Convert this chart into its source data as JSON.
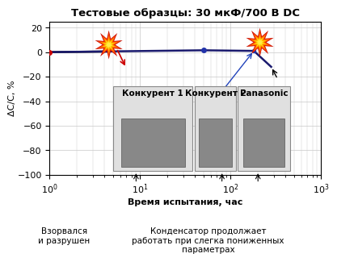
{
  "title": "Тестовые образцы: 30 мкФ/700 В DC",
  "xlabel": "Время испытания, час",
  "ylabel": "ΔC/C, %",
  "xlim": [
    1,
    1000
  ],
  "ylim": [
    -100,
    25
  ],
  "yticks": [
    -100,
    -80,
    -60,
    -40,
    -20,
    0,
    20
  ],
  "bg_color": "#ffffff",
  "grid_color": "#c8c8c8",
  "line_color": "#1a1a6e",
  "ann1_text": "Взорвался\nи разрушен",
  "ann2_text": "Конденсатор продолжает\nработать при слегка пониженных\nпараметрах",
  "box1_label": "Конкурент 1",
  "box2_label": "Конкурент 2",
  "box3_label": "Panasonic",
  "title_fontsize": 9.5,
  "axis_fontsize": 8,
  "tick_fontsize": 8,
  "ann_fontsize": 7.5
}
